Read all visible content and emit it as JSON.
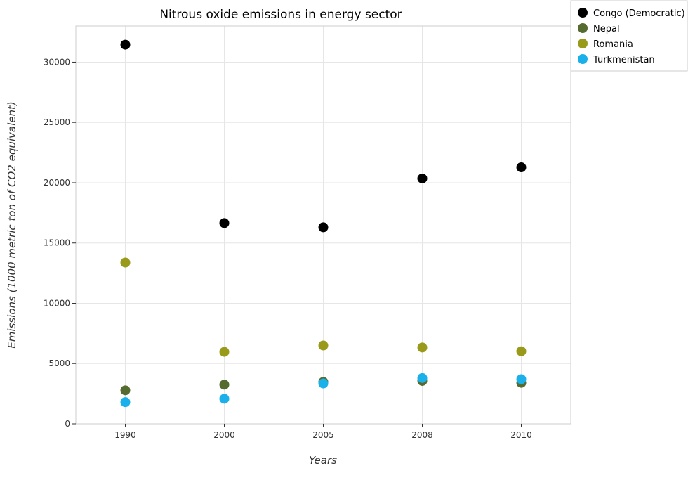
{
  "chart_data": {
    "type": "scatter",
    "title": "Nitrous oxide emissions in energy sector",
    "xlabel": "Years",
    "ylabel": "Emissions (1000 metric ton of CO2 equivalent)",
    "categories": [
      "1990",
      "2000",
      "2005",
      "2008",
      "2010"
    ],
    "ylim": [
      0,
      33000
    ],
    "yticks": [
      0,
      5000,
      10000,
      15000,
      20000,
      25000,
      30000
    ],
    "grid": true,
    "legend_position": "top-right",
    "series": [
      {
        "name": "Congo (Democratic)",
        "color": "#000000",
        "values": [
          31450,
          16650,
          16300,
          20350,
          21280
        ]
      },
      {
        "name": "Nepal",
        "color": "#556b2f",
        "values": [
          2780,
          3250,
          3480,
          3560,
          3400
        ]
      },
      {
        "name": "Romania",
        "color": "#9a9a1a",
        "values": [
          13380,
          5970,
          6500,
          6330,
          6020
        ]
      },
      {
        "name": "Turkmenistan",
        "color": "#1ab0ea",
        "values": [
          1800,
          2080,
          3350,
          3800,
          3700
        ]
      }
    ]
  }
}
